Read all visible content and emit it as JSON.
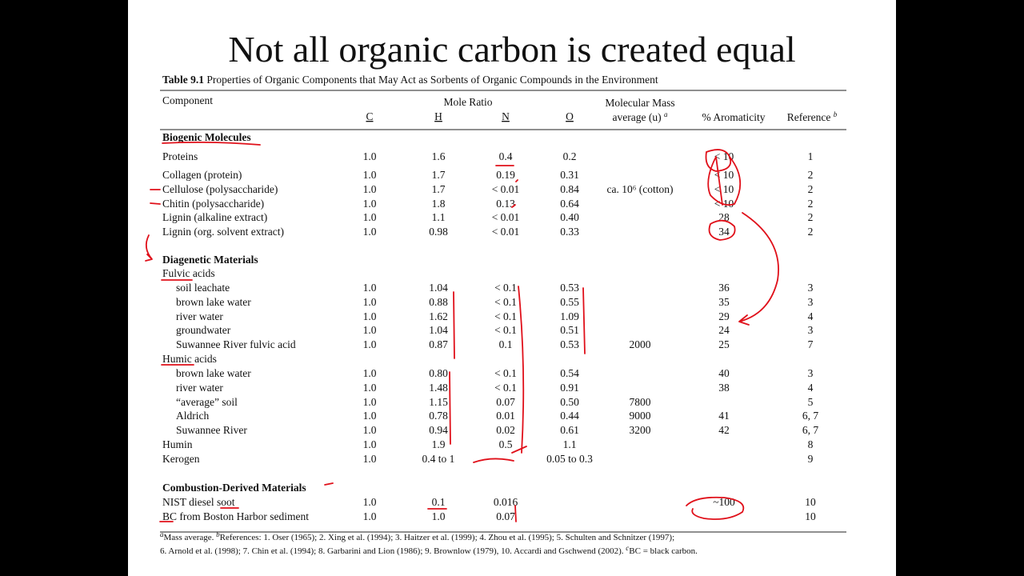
{
  "title": "Not all organic carbon is created equal",
  "caption": {
    "label": "Table 9.1",
    "text": "Properties of Organic Components that May Act as Sorbents of Organic Compounds in the Environment"
  },
  "header": {
    "component": "Component",
    "mole_ratio": "Mole Ratio",
    "c": "C",
    "h": "H",
    "n": "N",
    "o": "O",
    "mass_1": "Molecular Mass",
    "mass_2": "average (u)",
    "mass_note": "a",
    "aromaticity": "% Aromaticity",
    "reference": "Reference",
    "reference_note": "b"
  },
  "table": {
    "sections": [
      {
        "title": "Biogenic Molecules",
        "rows": [
          [
            "Proteins",
            "1.0",
            "1.6",
            "0.4",
            "0.2",
            null,
            "< 10",
            "1"
          ],
          [
            "Collagen (protein)",
            "1.0",
            "1.7",
            "0.19",
            "0.31",
            null,
            "< 10",
            "2"
          ],
          [
            "Cellulose (polysaccharide)",
            "1.0",
            "1.7",
            "< 0.01",
            "0.84",
            "ca. 10⁶ (cotton)",
            "< 10",
            "2"
          ],
          [
            "Chitin (polysaccharide)",
            "1.0",
            "1.8",
            "0.13",
            "0.64",
            null,
            "< 10",
            "2"
          ],
          [
            "Lignin (alkaline extract)",
            "1.0",
            "1.1",
            "< 0.01",
            "0.40",
            null,
            "28",
            "2"
          ],
          [
            "Lignin (org. solvent extract)",
            "1.0",
            "0.98",
            "< 0.01",
            "0.33",
            null,
            "34",
            "2"
          ]
        ]
      },
      {
        "title": "Diagenetic Materials",
        "groups": [
          {
            "title": "Fulvic acids",
            "rows": [
              [
                "soil leachate",
                "1.0",
                "1.04",
                "< 0.1",
                "0.53",
                null,
                "36",
                "3"
              ],
              [
                "brown lake water",
                "1.0",
                "0.88",
                "< 0.1",
                "0.55",
                null,
                "35",
                "3"
              ],
              [
                "river water",
                "1.0",
                "1.62",
                "< 0.1",
                "1.09",
                null,
                "29",
                "4"
              ],
              [
                "groundwater",
                "1.0",
                "1.04",
                "< 0.1",
                "0.51",
                null,
                "24",
                "3"
              ],
              [
                "Suwannee River fulvic acid",
                "1.0",
                "0.87",
                "0.1",
                "0.53",
                "2000",
                "25",
                "7"
              ]
            ]
          },
          {
            "title": "Humic acids",
            "rows": [
              [
                "brown lake water",
                "1.0",
                "0.80",
                "< 0.1",
                "0.54",
                null,
                "40",
                "3"
              ],
              [
                "river water",
                "1.0",
                "1.48",
                "< 0.1",
                "0.91",
                null,
                "38",
                "4"
              ],
              [
                "“average” soil",
                "1.0",
                "1.15",
                "0.07",
                "0.50",
                "7800",
                null,
                "5"
              ],
              [
                "Aldrich",
                "1.0",
                "0.78",
                "0.01",
                "0.44",
                "9000",
                "41",
                "6, 7"
              ],
              [
                "Suwannee River",
                "1.0",
                "0.94",
                "0.02",
                "0.61",
                "3200",
                "42",
                "6, 7"
              ]
            ]
          }
        ],
        "rows": [
          [
            "Humin",
            "1.0",
            "1.9",
            "0.5",
            "1.1",
            null,
            null,
            "8"
          ],
          [
            "Kerogen",
            "1.0",
            "0.4 to 1",
            null,
            "0.05 to 0.3",
            null,
            null,
            "9"
          ]
        ]
      },
      {
        "title": "Combustion-Derived Materials",
        "rows": [
          [
            "NIST diesel soot",
            "1.0",
            "0.1",
            "0.016",
            null,
            null,
            "~100",
            "10"
          ],
          [
            "BC from Boston Harbor sediment",
            "1.0",
            "1.0",
            "0.07",
            null,
            null,
            null,
            "10"
          ]
        ]
      }
    ]
  },
  "footnotes": {
    "a_mark": "a",
    "a": "Mass average.",
    "b_mark": "b",
    "b": "References: 1. Oser (1965); 2. Xing et al. (1994); 3. Haitzer et al. (1999); 4. Zhou et al. (1995); 5. Schulten and Schnitzer (1997);",
    "b_cont": "6. Arnold et al. (1998); 7. Chin et al. (1994); 8. Garbarini and Lion (1986); 9. Brownlow (1979), 10. Accardi and Gschwend (2002).",
    "c_mark": "c",
    "c": "BC = black carbon."
  }
}
